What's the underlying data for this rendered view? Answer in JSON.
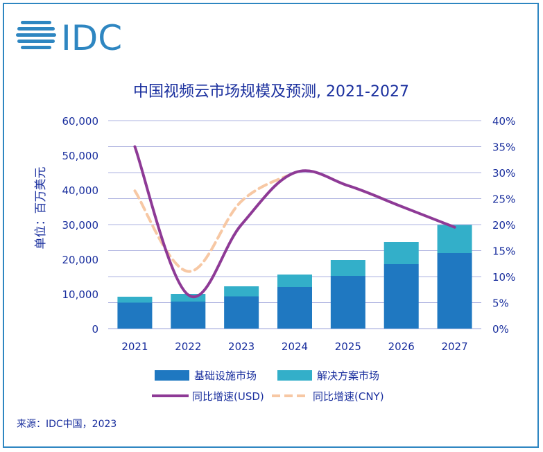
{
  "brand": {
    "logo_text": "IDC",
    "color": "#2e86c1"
  },
  "source": "来源：IDC中国，2023",
  "chart_data": {
    "type": "bar",
    "title": "中国视频云市场规模及预测, 2021-2027",
    "ylabel": "单位：百万美元",
    "categories": [
      "2021",
      "2022",
      "2023",
      "2024",
      "2025",
      "2026",
      "2027"
    ],
    "ylim": [
      0,
      60000
    ],
    "y_ticks": [
      "0",
      "10,000",
      "20,000",
      "30,000",
      "40,000",
      "50,000",
      "60,000"
    ],
    "y2lim": [
      0,
      40
    ],
    "y2_ticks": [
      "0%",
      "5%",
      "10%",
      "15%",
      "20%",
      "25%",
      "30%",
      "35%",
      "40%"
    ],
    "stacked": true,
    "grid": true,
    "legend_position": "bottom",
    "series": [
      {
        "name": "基础设施市场",
        "kind": "bar",
        "color": "#1f78c1",
        "values": [
          7500,
          7800,
          9300,
          12000,
          15200,
          18600,
          21800
        ]
      },
      {
        "name": "解决方案市场",
        "kind": "bar",
        "color": "#33afc9",
        "values": [
          1700,
          2200,
          2900,
          3600,
          4600,
          6400,
          8100
        ]
      },
      {
        "name": "同比增速(USD)",
        "kind": "line",
        "axis": "right",
        "color": "#8e3a96",
        "values": [
          35,
          6.5,
          20,
          30,
          27.5,
          23.5,
          19.5
        ]
      },
      {
        "name": "同比增速(CNY)",
        "kind": "dashed-line",
        "axis": "right",
        "color": "#f7c8a4",
        "values": [
          26.5,
          11,
          24.5,
          30,
          null,
          null,
          null
        ]
      }
    ]
  }
}
